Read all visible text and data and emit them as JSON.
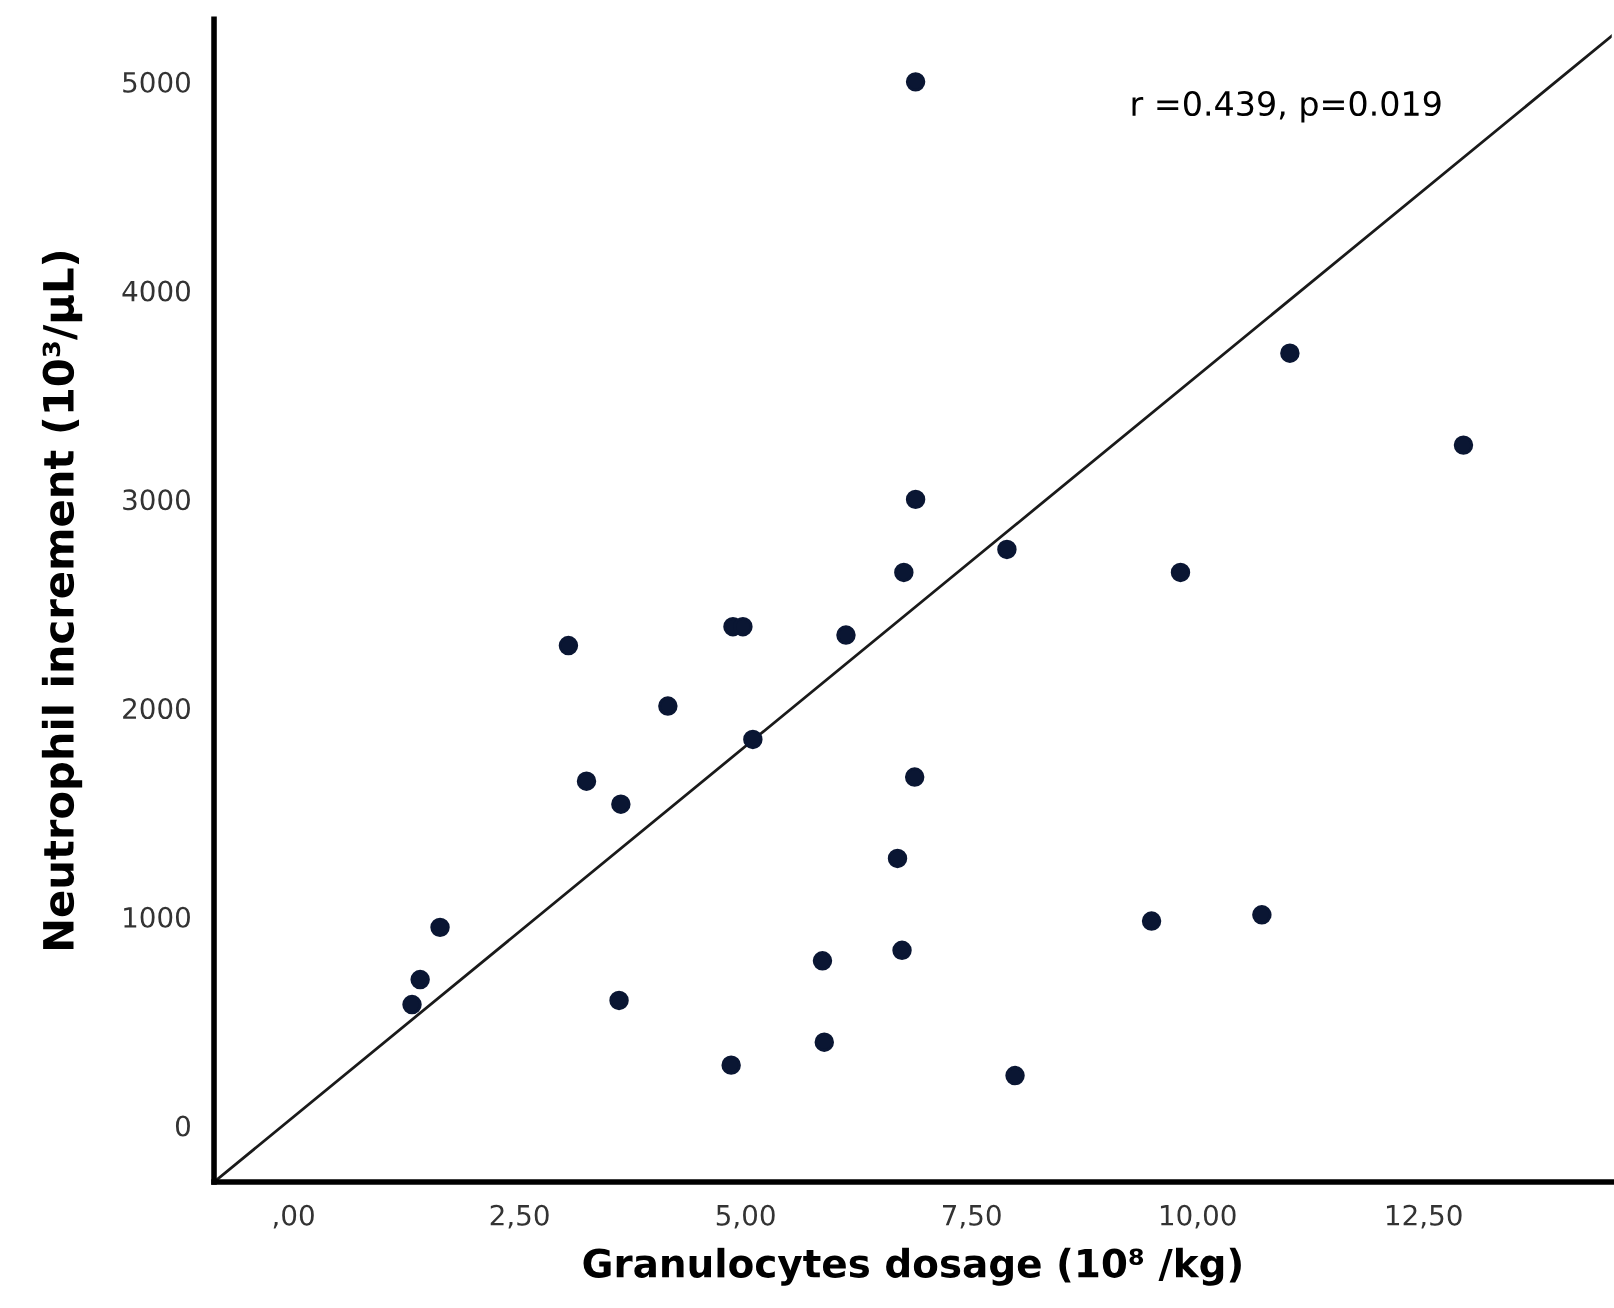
{
  "chart_data": {
    "type": "scatter",
    "xlabel": "Granulocytes dosage (10⁸ /kg)",
    "ylabel": "Neutrophil increment (10³/μL)",
    "annotations": [
      "r =0.439, p=0.019"
    ],
    "xlim": [
      -0.88,
      14.58
    ],
    "ylim": [
      -270,
      5300
    ],
    "xticks": [
      {
        "value": 0,
        "label": ",00"
      },
      {
        "value": 2.5,
        "label": "2,50"
      },
      {
        "value": 5,
        "label": "5,00"
      },
      {
        "value": 7.5,
        "label": "7,50"
      },
      {
        "value": 10,
        "label": "10,00"
      },
      {
        "value": 12.5,
        "label": "12,50"
      }
    ],
    "yticks": [
      0,
      1000,
      2000,
      3000,
      4000,
      5000
    ],
    "grid": false,
    "series": [
      {
        "marker": "circle",
        "color": "#0a1633",
        "x": [
          6.88,
          6.88,
          6.75,
          4.86,
          4.97,
          6.11,
          11.02,
          12.94,
          7.89,
          9.81,
          3.04,
          4.14,
          5.08,
          3.24,
          3.62,
          6.87,
          6.68,
          1.62,
          1.4,
          1.31,
          3.6,
          5.85,
          6.73,
          5.87,
          4.84,
          9.49,
          10.71,
          7.98
        ],
        "values": [
          5000,
          3000,
          2650,
          2390,
          2390,
          2350,
          3700,
          3260,
          2760,
          2650,
          2300,
          2010,
          1850,
          1650,
          1540,
          1670,
          1280,
          950,
          700,
          580,
          600,
          790,
          840,
          400,
          290,
          980,
          1010,
          240
        ]
      },
      {
        "type": "line",
        "marker": "none",
        "color": "#1a1a1a",
        "x": [
          -0.88,
          14.58
        ],
        "values": [
          -270,
          5220
        ]
      }
    ]
  }
}
